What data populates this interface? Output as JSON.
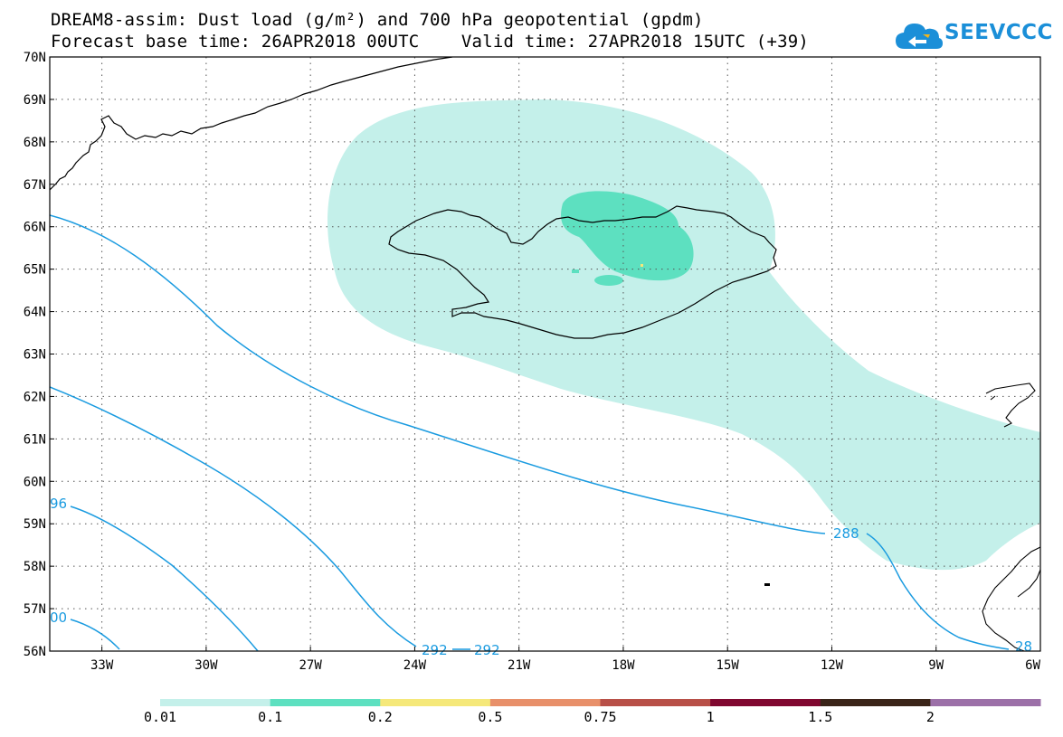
{
  "header": {
    "title_line1": "DREAM8-assim: Dust load (g/m²) and 700 hPa geopotential (gpdm)",
    "title_line2": "Forecast base time: 26APR2018 00UTC    Valid time: 27APR2018 15UTC (+39)"
  },
  "logo": {
    "text": "SEEVCCC",
    "icon": "cloud-logo-icon",
    "color": "#1b8fd8"
  },
  "map": {
    "lat_labels": [
      "70N",
      "69N",
      "68N",
      "67N",
      "66N",
      "65N",
      "64N",
      "63N",
      "62N",
      "61N",
      "60N",
      "59N",
      "58N",
      "57N",
      "56N"
    ],
    "lon_labels": [
      "33W",
      "30W",
      "27W",
      "24W",
      "21W",
      "18W",
      "15W",
      "12W",
      "9W",
      "6W"
    ],
    "lat_range": [
      56,
      70
    ],
    "lon_range": [
      -34.5,
      -6
    ],
    "grid": "dotted",
    "contour_labels": [
      "96",
      "288",
      "00",
      "292",
      "292",
      "28"
    ],
    "colors": {
      "coast": "#000000",
      "contour": "#1a9be0",
      "dust_low": "#c4f0ea",
      "dust_mid": "#5de0c0"
    }
  },
  "colorbar": {
    "labels": [
      "0.01",
      "0.1",
      "0.2",
      "0.5",
      "0.75",
      "1",
      "1.5",
      "2"
    ],
    "colors": [
      "#c4f0ea",
      "#5de0c0",
      "#f5e87a",
      "#e8906a",
      "#b85048",
      "#800830",
      "#3a2418",
      "#9c70a8"
    ]
  }
}
